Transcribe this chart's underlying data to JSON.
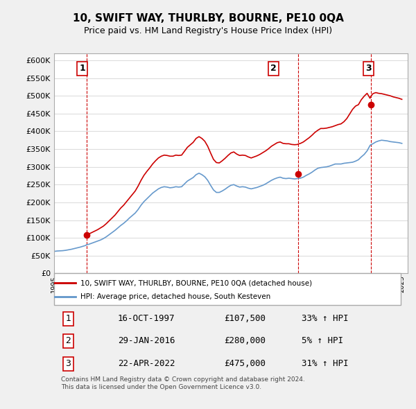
{
  "title": "10, SWIFT WAY, THURLBY, BOURNE, PE10 0QA",
  "subtitle": "Price paid vs. HM Land Registry's House Price Index (HPI)",
  "ylabel_ticks": [
    "£0",
    "£50K",
    "£100K",
    "£150K",
    "£200K",
    "£250K",
    "£300K",
    "£350K",
    "£400K",
    "£450K",
    "£500K",
    "£550K",
    "£600K"
  ],
  "ytick_values": [
    0,
    50000,
    100000,
    150000,
    200000,
    250000,
    300000,
    350000,
    400000,
    450000,
    500000,
    550000,
    600000
  ],
  "xmin": 1995.0,
  "xmax": 2025.5,
  "ymin": 0,
  "ymax": 620000,
  "sale_dates": [
    1997.79,
    2016.08,
    2022.31
  ],
  "sale_prices": [
    107500,
    280000,
    475000
  ],
  "sale_labels": [
    "1",
    "2",
    "3"
  ],
  "hpi_years": [
    1995.0,
    1995.25,
    1995.5,
    1995.75,
    1996.0,
    1996.25,
    1996.5,
    1996.75,
    1997.0,
    1997.25,
    1997.5,
    1997.75,
    1997.79,
    1998.0,
    1998.25,
    1998.5,
    1998.75,
    1999.0,
    1999.25,
    1999.5,
    1999.75,
    2000.0,
    2000.25,
    2000.5,
    2000.75,
    2001.0,
    2001.25,
    2001.5,
    2001.75,
    2002.0,
    2002.25,
    2002.5,
    2002.75,
    2003.0,
    2003.25,
    2003.5,
    2003.75,
    2004.0,
    2004.25,
    2004.5,
    2004.75,
    2005.0,
    2005.25,
    2005.5,
    2005.75,
    2006.0,
    2006.25,
    2006.5,
    2006.75,
    2007.0,
    2007.25,
    2007.5,
    2007.75,
    2008.0,
    2008.25,
    2008.5,
    2008.75,
    2009.0,
    2009.25,
    2009.5,
    2009.75,
    2010.0,
    2010.25,
    2010.5,
    2010.75,
    2011.0,
    2011.25,
    2011.5,
    2011.75,
    2012.0,
    2012.25,
    2012.5,
    2012.75,
    2013.0,
    2013.25,
    2013.5,
    2013.75,
    2014.0,
    2014.25,
    2014.5,
    2014.75,
    2015.0,
    2015.25,
    2015.5,
    2015.75,
    2016.0,
    2016.08,
    2016.25,
    2016.5,
    2016.75,
    2017.0,
    2017.25,
    2017.5,
    2017.75,
    2018.0,
    2018.25,
    2018.5,
    2018.75,
    2019.0,
    2019.25,
    2019.5,
    2019.75,
    2020.0,
    2020.25,
    2020.5,
    2020.75,
    2021.0,
    2021.25,
    2021.5,
    2021.75,
    2022.0,
    2022.25,
    2022.31,
    2022.5,
    2022.75,
    2023.0,
    2023.25,
    2023.5,
    2023.75,
    2024.0,
    2024.25,
    2024.5,
    2024.75,
    2025.0
  ],
  "hpi_values": [
    62000,
    63000,
    63500,
    64000,
    65000,
    66500,
    68000,
    70000,
    72000,
    74000,
    76500,
    79000,
    80700,
    82000,
    85000,
    88000,
    91000,
    94000,
    98000,
    103000,
    109000,
    115000,
    121000,
    128000,
    135000,
    141000,
    148000,
    156000,
    163000,
    170000,
    180000,
    192000,
    202000,
    210000,
    218000,
    226000,
    232000,
    238000,
    242000,
    244000,
    243000,
    241000,
    242000,
    244000,
    243000,
    244000,
    252000,
    260000,
    265000,
    270000,
    278000,
    282000,
    278000,
    272000,
    262000,
    248000,
    235000,
    228000,
    228000,
    232000,
    237000,
    243000,
    248000,
    250000,
    246000,
    243000,
    244000,
    243000,
    240000,
    238000,
    240000,
    242000,
    245000,
    248000,
    252000,
    257000,
    262000,
    266000,
    269000,
    271000,
    268000,
    267000,
    268000,
    267000,
    265900,
    267000,
    267500,
    268000,
    271000,
    276000,
    280000,
    285000,
    291000,
    296000,
    298000,
    299000,
    300000,
    302000,
    305000,
    308000,
    308000,
    308000,
    310000,
    311000,
    312000,
    313000,
    316000,
    320000,
    328000,
    335000,
    345000,
    360000,
    362100,
    365000,
    370000,
    373000,
    375000,
    374000,
    373000,
    371000,
    370000,
    369000,
    368000,
    366000
  ],
  "red_hpi_years": [
    1997.79,
    1998.0,
    1998.25,
    1998.5,
    1998.75,
    1999.0,
    1999.25,
    1999.5,
    1999.75,
    2000.0,
    2000.25,
    2000.5,
    2000.75,
    2001.0,
    2001.25,
    2001.5,
    2001.75,
    2002.0,
    2002.25,
    2002.5,
    2002.75,
    2003.0,
    2003.25,
    2003.5,
    2003.75,
    2004.0,
    2004.25,
    2004.5,
    2004.75,
    2005.0,
    2005.25,
    2005.5,
    2005.75,
    2006.0,
    2006.25,
    2006.5,
    2006.75,
    2007.0,
    2007.25,
    2007.5,
    2007.75,
    2008.0,
    2008.25,
    2008.5,
    2008.75,
    2009.0,
    2009.25,
    2009.5,
    2009.75,
    2010.0,
    2010.25,
    2010.5,
    2010.75,
    2011.0,
    2011.25,
    2011.5,
    2011.75,
    2012.0,
    2012.25,
    2012.5,
    2012.75,
    2013.0,
    2013.25,
    2013.5,
    2013.75,
    2014.0,
    2014.25,
    2014.5,
    2014.75,
    2015.0,
    2015.25,
    2015.5,
    2015.75,
    2016.0,
    2016.08,
    2016.25,
    2016.5,
    2016.75,
    2017.0,
    2017.25,
    2017.5,
    2017.75,
    2018.0,
    2018.25,
    2018.5,
    2018.75,
    2019.0,
    2019.25,
    2019.5,
    2019.75,
    2020.0,
    2020.25,
    2020.5,
    2020.75,
    2021.0,
    2021.25,
    2021.5,
    2021.75,
    2022.0,
    2022.25,
    2022.31,
    2022.5,
    2022.75,
    2023.0,
    2023.25,
    2023.5,
    2023.75,
    2024.0,
    2024.25,
    2024.5,
    2024.75,
    2025.0
  ],
  "red_hpi_values": [
    107500,
    111000,
    115000,
    119000,
    123000,
    128000,
    133000,
    140000,
    148000,
    156000,
    164000,
    174000,
    184000,
    192000,
    202000,
    212000,
    222000,
    232000,
    246000,
    262000,
    276000,
    287000,
    297000,
    308000,
    317000,
    325000,
    330000,
    333000,
    332000,
    330000,
    330000,
    333000,
    332000,
    333000,
    344000,
    355000,
    362000,
    369000,
    380000,
    385000,
    380000,
    372000,
    358000,
    339000,
    321000,
    312000,
    311000,
    317000,
    324000,
    332000,
    339000,
    342000,
    336000,
    332000,
    333000,
    332000,
    328000,
    325000,
    328000,
    331000,
    335000,
    340000,
    345000,
    351000,
    358000,
    363000,
    368000,
    370000,
    366000,
    365000,
    365000,
    363000,
    362300,
    363000,
    364500,
    366000,
    370000,
    376000,
    382000,
    389000,
    397000,
    403000,
    408000,
    408000,
    409000,
    411000,
    413000,
    416000,
    419000,
    421000,
    427000,
    436000,
    449000,
    462000,
    471000,
    475000,
    489000,
    499000,
    507000,
    493100,
    498000,
    506000,
    509000,
    507000,
    506000,
    504000,
    502000,
    500000,
    497000,
    495000,
    493000,
    490000
  ],
  "vline_dates": [
    1997.79,
    2016.08,
    2022.31
  ],
  "vline_color": "#cc0000",
  "hpi_line_color": "#6699cc",
  "red_line_color": "#cc0000",
  "legend_label_red": "10, SWIFT WAY, THURLBY, BOURNE, PE10 0QA (detached house)",
  "legend_label_blue": "HPI: Average price, detached house, South Kesteven",
  "table_data": [
    [
      "1",
      "16-OCT-1997",
      "£107,500",
      "33% ↑ HPI"
    ],
    [
      "2",
      "29-JAN-2016",
      "£280,000",
      "5% ↑ HPI"
    ],
    [
      "3",
      "22-APR-2022",
      "£475,000",
      "31% ↑ HPI"
    ]
  ],
  "footnote": "Contains HM Land Registry data © Crown copyright and database right 2024.\nThis data is licensed under the Open Government Licence v3.0.",
  "bg_color": "#f0f0f0",
  "plot_bg_color": "#ffffff",
  "grid_color": "#dddddd"
}
